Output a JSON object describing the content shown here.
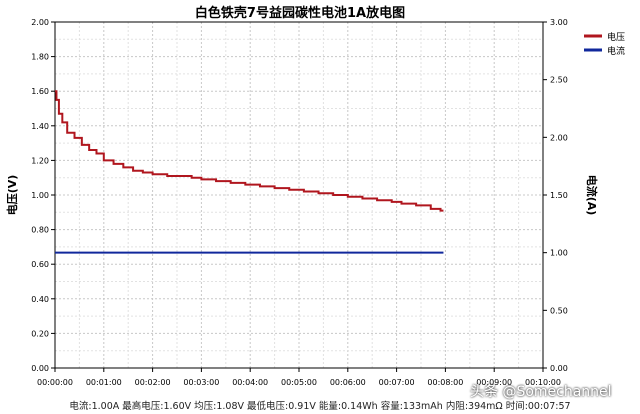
{
  "chart_data": {
    "type": "line",
    "title": "白色铁壳7号益园碳性电池1A放电图",
    "ylabel_left": "电压(V)",
    "ylabel_right": "电流(A)",
    "ylim_left": [
      0,
      2
    ],
    "ylim_right": [
      0,
      3
    ],
    "yticks_left": [
      "0.00",
      "0.20",
      "0.40",
      "0.60",
      "0.80",
      "1.00",
      "1.20",
      "1.40",
      "1.60",
      "1.80",
      "2.00"
    ],
    "yticks_right": [
      "0.00",
      "0.50",
      "1.00",
      "1.50",
      "2.00",
      "2.50",
      "3.00"
    ],
    "xticks": [
      "00:00:00",
      "00:01:00",
      "00:02:00",
      "00:03:00",
      "00:04:00",
      "00:05:00",
      "00:06:00",
      "00:07:00",
      "00:08:00",
      "00:09:00",
      "00:10:00"
    ],
    "xlim_minutes": [
      0,
      10
    ],
    "grid": true,
    "legend_position": "top-right",
    "series": [
      {
        "name": "电压",
        "axis": "left",
        "color": "#b0161e",
        "x_minutes": [
          0,
          0.03,
          0.08,
          0.15,
          0.25,
          0.4,
          0.55,
          0.7,
          0.85,
          1.0,
          1.2,
          1.4,
          1.6,
          1.8,
          2.0,
          2.3,
          2.6,
          2.8,
          3.0,
          3.3,
          3.6,
          3.9,
          4.2,
          4.5,
          4.8,
          5.1,
          5.4,
          5.7,
          6.0,
          6.3,
          6.6,
          6.9,
          7.1,
          7.4,
          7.7,
          7.9,
          7.96
        ],
        "y": [
          1.6,
          1.55,
          1.47,
          1.42,
          1.36,
          1.33,
          1.29,
          1.26,
          1.24,
          1.2,
          1.18,
          1.16,
          1.14,
          1.13,
          1.12,
          1.11,
          1.11,
          1.1,
          1.09,
          1.08,
          1.07,
          1.06,
          1.05,
          1.04,
          1.03,
          1.02,
          1.01,
          1.0,
          0.99,
          0.98,
          0.97,
          0.96,
          0.95,
          0.94,
          0.92,
          0.91,
          0.91
        ]
      },
      {
        "name": "电流",
        "axis": "right",
        "color": "#10289c",
        "x_minutes": [
          0,
          7.96
        ],
        "y": [
          1.0,
          1.0
        ]
      }
    ]
  },
  "footer_text": "电流:1.00A 最高电压:1.60V 均压:1.08V 最低电压:0.91V 能量:0.14Wh 容量:133mAh 内阻:394mΩ 时间:00:07:57",
  "watermark": "头条 @Somechannel"
}
